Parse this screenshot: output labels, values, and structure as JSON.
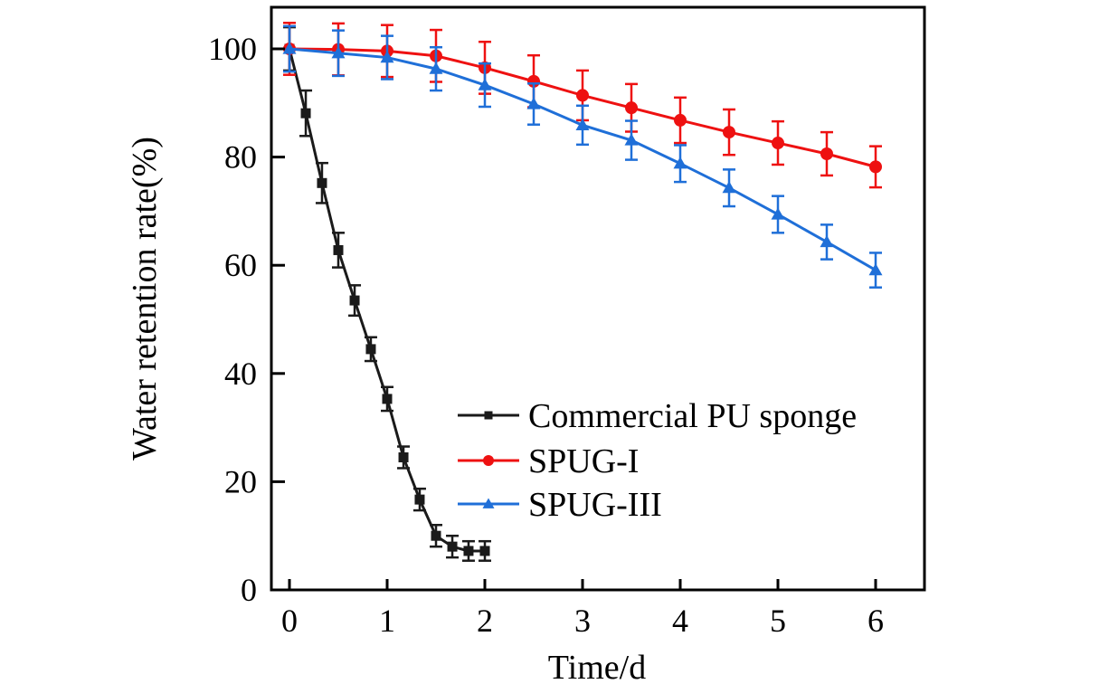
{
  "chart_data": {
    "type": "line",
    "title": "",
    "xlabel": "Time/d",
    "ylabel": "Water retention rate(%)",
    "xlim": [
      -0.18,
      6.5
    ],
    "ylim": [
      0,
      108
    ],
    "xticks": [
      0,
      1,
      2,
      3,
      4,
      5,
      6
    ],
    "yticks": [
      0,
      20,
      40,
      60,
      80,
      100
    ],
    "xtick_labels": [
      "0",
      "1",
      "2",
      "3",
      "4",
      "5",
      "6"
    ],
    "ytick_labels": [
      "0",
      "20",
      "40",
      "60",
      "80",
      "100"
    ],
    "grid": false,
    "legend_position": "lower-right",
    "series": [
      {
        "name": "Commercial PU sponge",
        "color": "#1a1a1a",
        "marker": "square",
        "x": [
          0,
          0.167,
          0.333,
          0.5,
          0.667,
          0.833,
          1.0,
          1.167,
          1.333,
          1.5,
          1.667,
          1.833,
          2.0
        ],
        "values": [
          100,
          88.1,
          75.2,
          62.8,
          53.5,
          44.5,
          35.3,
          24.5,
          16.7,
          10.0,
          8.0,
          7.2,
          7.2
        ],
        "errors": [
          4.0,
          4.2,
          3.7,
          3.2,
          2.8,
          2.2,
          2.2,
          2.0,
          2.0,
          2.0,
          2.0,
          1.8,
          1.8
        ]
      },
      {
        "name": "SPUG-I",
        "color": "#ee1111",
        "marker": "circle",
        "x": [
          0,
          0.5,
          1.0,
          1.5,
          2.0,
          2.5,
          3.0,
          3.5,
          4.0,
          4.5,
          5.0,
          5.5,
          6.0
        ],
        "values": [
          100,
          99.9,
          99.6,
          98.7,
          96.5,
          94.0,
          91.4,
          89.1,
          86.8,
          84.6,
          82.6,
          80.6,
          78.2
        ],
        "errors": [
          4.8,
          4.8,
          4.8,
          4.8,
          4.8,
          4.8,
          4.6,
          4.4,
          4.2,
          4.2,
          4.0,
          4.0,
          3.8
        ]
      },
      {
        "name": "SPUG-III",
        "color": "#1f6fd8",
        "marker": "triangle",
        "x": [
          0,
          0.5,
          1.0,
          1.5,
          2.0,
          2.5,
          3.0,
          3.5,
          4.0,
          4.5,
          5.0,
          5.5,
          6.0
        ],
        "values": [
          100,
          99.2,
          98.4,
          96.3,
          93.3,
          89.8,
          85.9,
          83.1,
          78.8,
          74.3,
          69.4,
          64.3,
          59.1
        ],
        "errors": [
          4.2,
          4.2,
          4.0,
          4.0,
          4.0,
          3.8,
          3.6,
          3.6,
          3.4,
          3.4,
          3.4,
          3.2,
          3.2
        ]
      }
    ]
  }
}
